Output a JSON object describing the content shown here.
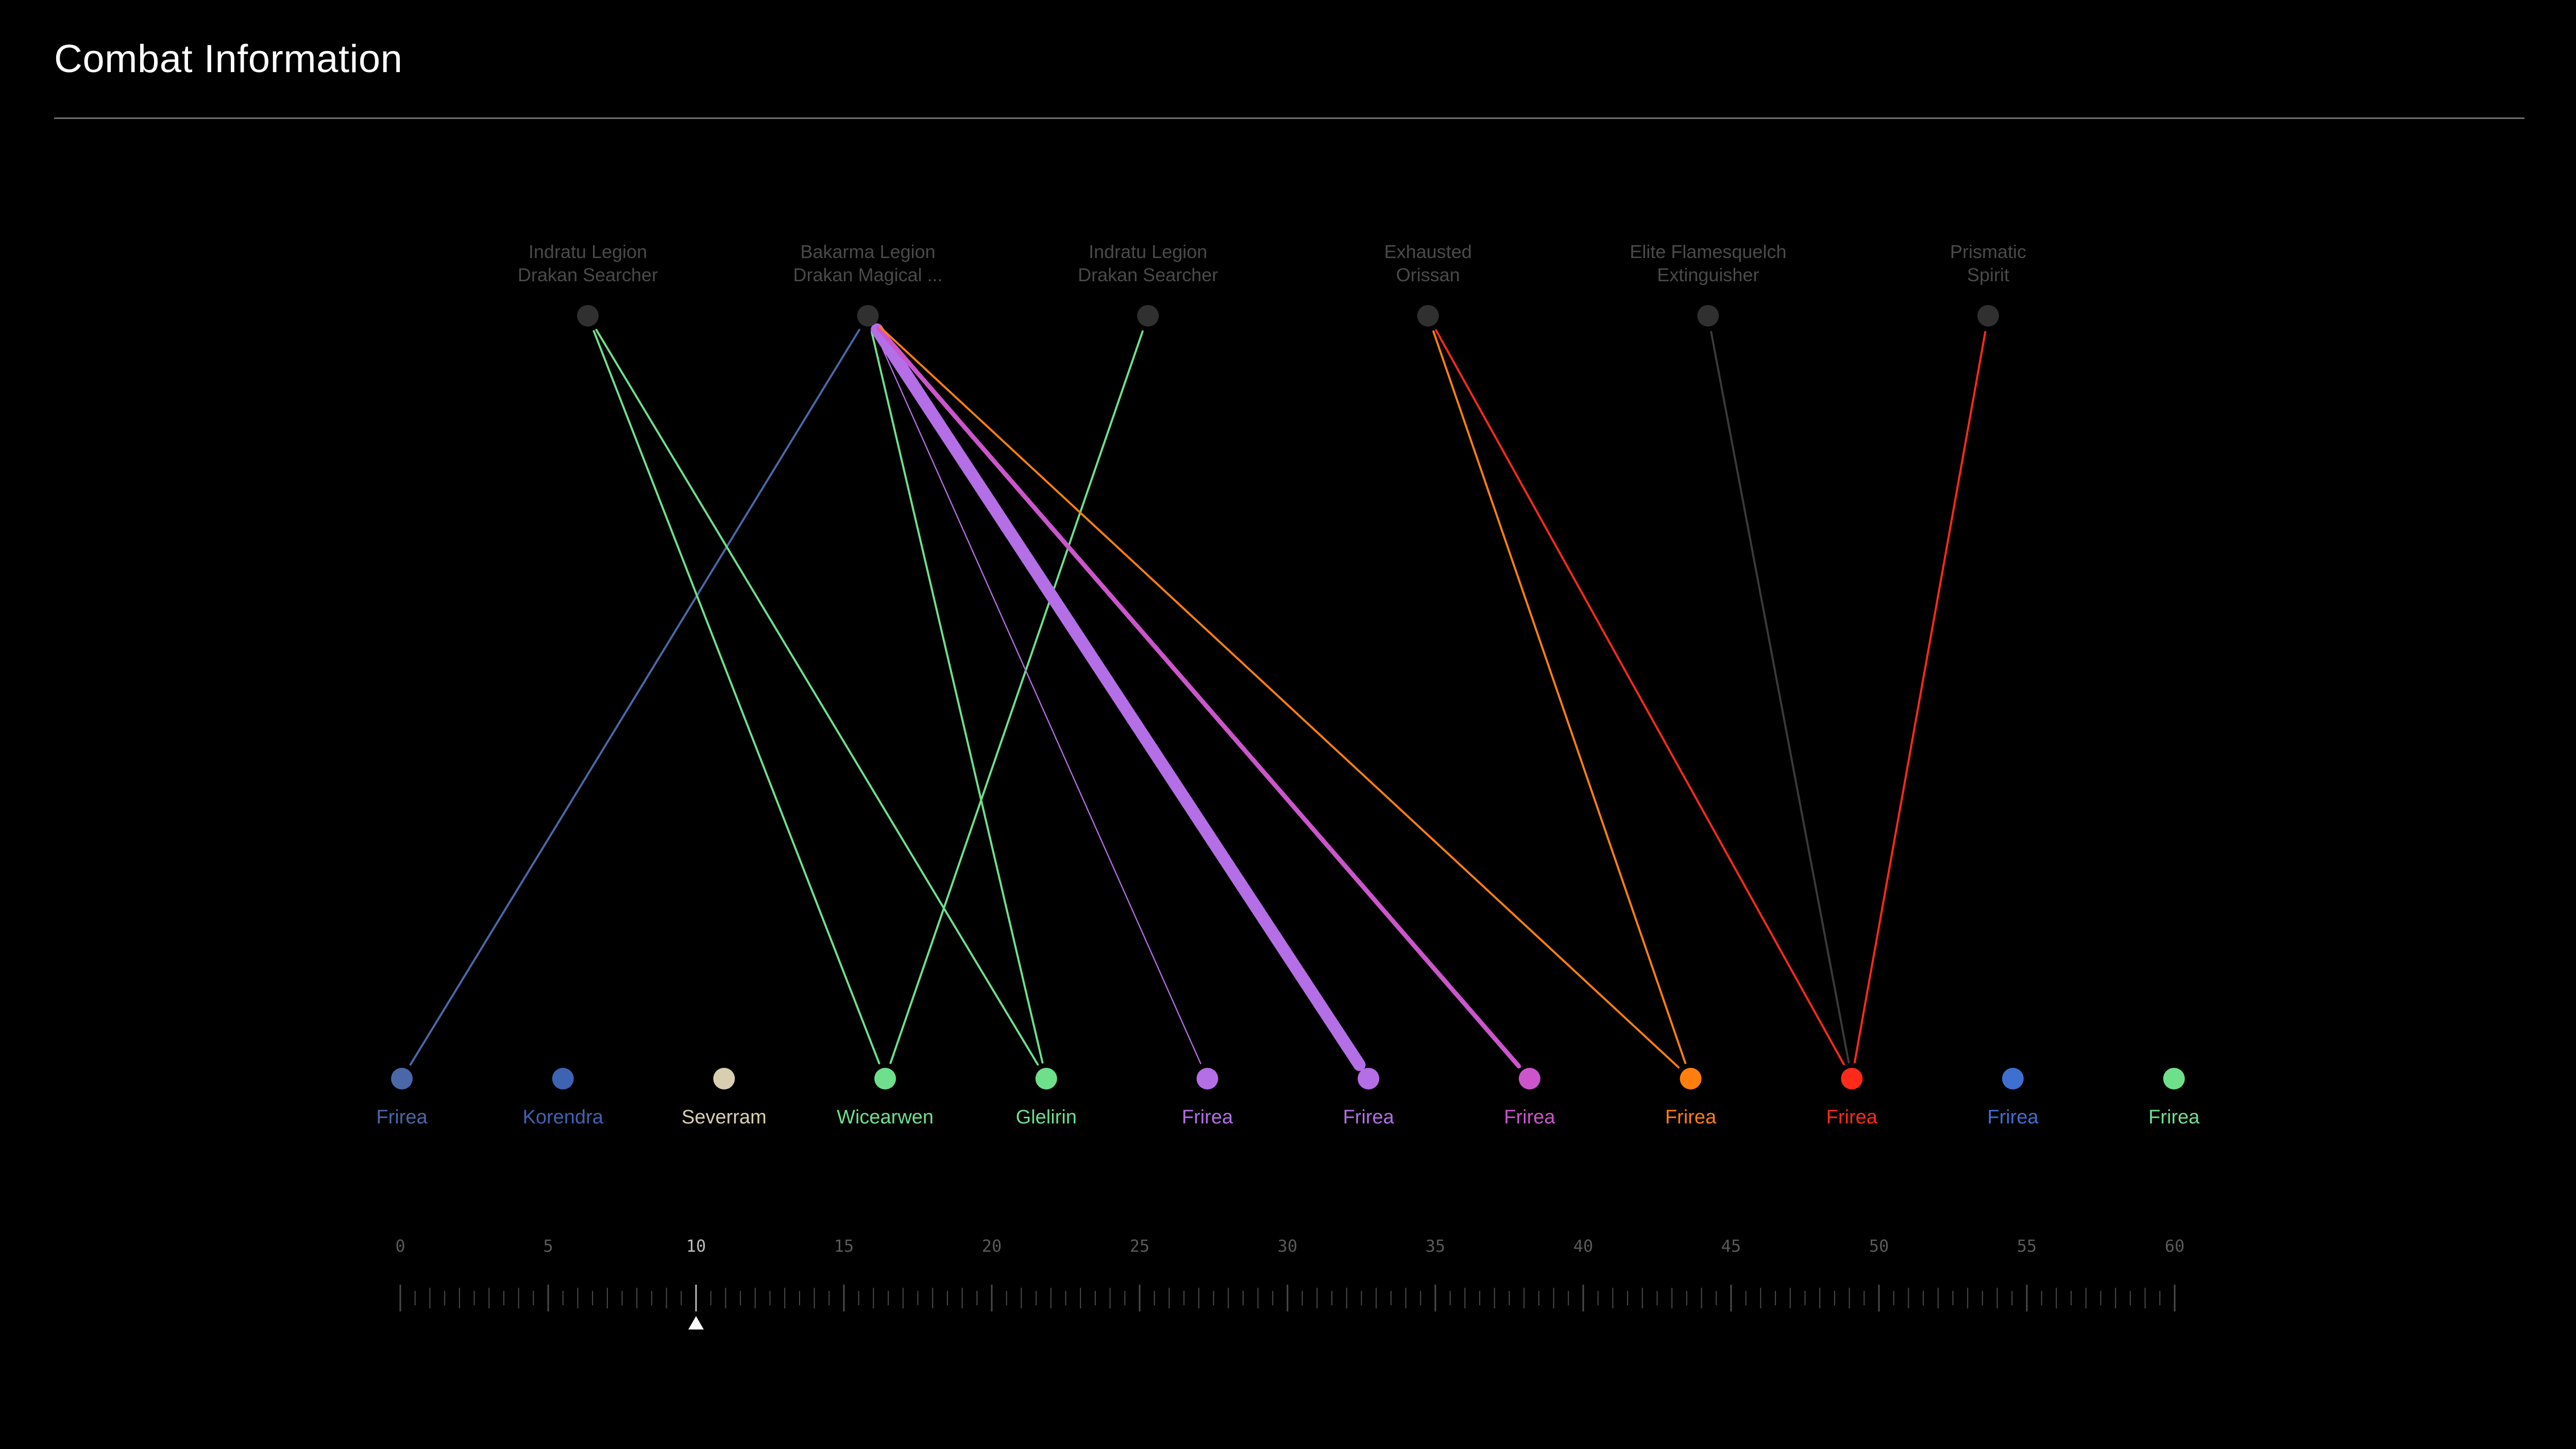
{
  "header": {
    "title": "Combat Information"
  },
  "enemies": [
    {
      "id": "e1",
      "name_lines": [
        "Indratu Legion",
        "Drakan Searcher"
      ],
      "color": "#303030"
    },
    {
      "id": "e2",
      "name_lines": [
        "Bakarma Legion",
        "Drakan Magical ..."
      ],
      "color": "#303030"
    },
    {
      "id": "e3",
      "name_lines": [
        "Indratu Legion",
        "Drakan Searcher"
      ],
      "color": "#303030"
    },
    {
      "id": "e4",
      "name_lines": [
        "Exhausted",
        "Orissan"
      ],
      "color": "#303030"
    },
    {
      "id": "e5",
      "name_lines": [
        "Elite Flamesquelch",
        "Extinguisher"
      ],
      "color": "#303030"
    },
    {
      "id": "e6",
      "name_lines": [
        "Prismatic",
        "Spirit"
      ],
      "color": "#303030"
    }
  ],
  "allies": [
    {
      "id": "a1",
      "name": "Frirea",
      "color": "#4a68a8"
    },
    {
      "id": "a2",
      "name": "Korendra",
      "color": "#3f63b3"
    },
    {
      "id": "a3",
      "name": "Severram",
      "color": "#d8cfb0"
    },
    {
      "id": "a4",
      "name": "Wicearwen",
      "color": "#6ee08c"
    },
    {
      "id": "a5",
      "name": "Glelirin",
      "color": "#6ee08c"
    },
    {
      "id": "a6",
      "name": "Frirea",
      "color": "#b46ee6"
    },
    {
      "id": "a7",
      "name": "Frirea",
      "color": "#b46ee6"
    },
    {
      "id": "a8",
      "name": "Frirea",
      "color": "#cc55cc"
    },
    {
      "id": "a9",
      "name": "Frirea",
      "color": "#ff7f0e"
    },
    {
      "id": "a10",
      "name": "Frirea",
      "color": "#ff2a1a"
    },
    {
      "id": "a11",
      "name": "Frirea",
      "color": "#3f6fd0"
    },
    {
      "id": "a12",
      "name": "Frirea",
      "color": "#6ee08c"
    }
  ],
  "links": [
    {
      "from": "e2",
      "to": "a1",
      "color": "#4a68a8",
      "weight": 1
    },
    {
      "from": "e1",
      "to": "a4",
      "color": "#6ee08c",
      "weight": 1
    },
    {
      "from": "e1",
      "to": "a5",
      "color": "#6ee08c",
      "weight": 1
    },
    {
      "from": "e3",
      "to": "a4",
      "color": "#6ee08c",
      "weight": 1
    },
    {
      "from": "e2",
      "to": "a5",
      "color": "#6ee08c",
      "weight": 1
    },
    {
      "from": "e2",
      "to": "a6",
      "color": "#b46ee6",
      "weight": 0.6
    },
    {
      "from": "e2",
      "to": "a7",
      "color": "#b46ee6",
      "weight": 6
    },
    {
      "from": "e2",
      "to": "a8",
      "color": "#cc55cc",
      "weight": 2.2
    },
    {
      "from": "e2",
      "to": "a9",
      "color": "#ff7f0e",
      "weight": 1
    },
    {
      "from": "e4",
      "to": "a9",
      "color": "#ff7f0e",
      "weight": 1
    },
    {
      "from": "e4",
      "to": "a10",
      "color": "#ff2a1a",
      "weight": 1
    },
    {
      "from": "e5",
      "to": "a10",
      "color": "#3a3a3a",
      "weight": 1
    },
    {
      "from": "e6",
      "to": "a10",
      "color": "#ff2a1a",
      "weight": 1
    }
  ],
  "timeline": {
    "min": 0,
    "max": 60,
    "label_step": 5,
    "minor_step": 1,
    "labels": [
      "0",
      "5",
      "10",
      "15",
      "20",
      "25",
      "30",
      "35",
      "40",
      "45",
      "50",
      "55",
      "60"
    ],
    "current": 10,
    "tick_color": "#4a4a4a",
    "marker_color": "#ffffff"
  }
}
